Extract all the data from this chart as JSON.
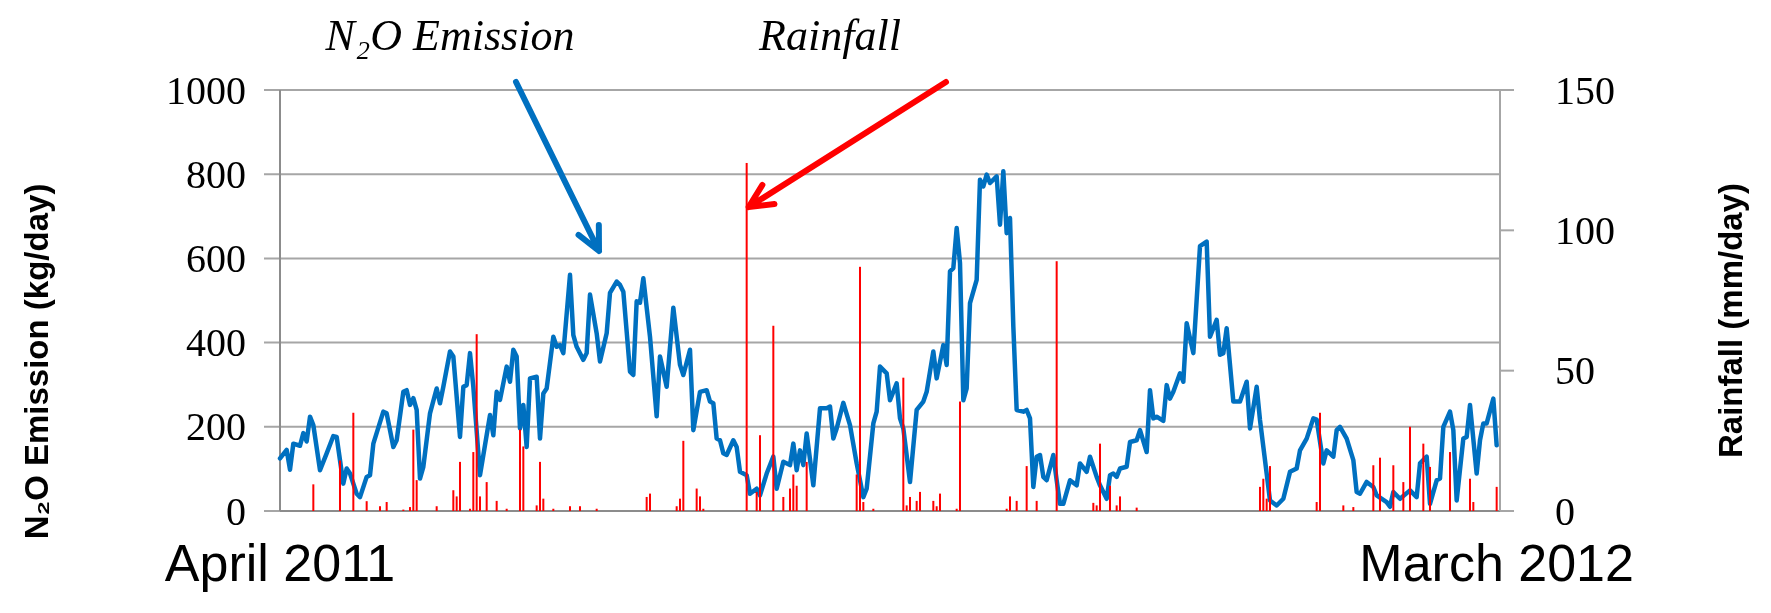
{
  "chart_data": {
    "type": "line",
    "ylabel": "N₂O Emission (kg/day)",
    "y2label": "Rainfall (mm/day)",
    "annotations": [
      "N₂O Emission",
      {
        "text": "Rainfall",
        "x": "2011-08-19",
        "y": 722
      }
    ],
    "xlim": [
      "2011-04-01",
      "2012-04-01"
    ],
    "xticks": [
      {
        "value": "2011-04-01",
        "label": "April 2011"
      },
      {
        "value": "2012-03-31",
        "label": "March 2012"
      }
    ],
    "ylim": [
      0,
      1000
    ],
    "yticks": [
      0,
      200,
      400,
      600,
      800,
      1000
    ],
    "y2lim": [
      0,
      150
    ],
    "y2ticks": [
      0,
      50,
      100,
      150
    ],
    "grid": "y",
    "series": [
      {
        "color": "#0070c0",
        "x": [
          "2011-04-01",
          "2011-04-03",
          "2011-04-04",
          "2011-04-05",
          "2011-04-07",
          "2011-04-08",
          "2011-04-09",
          "2011-04-10",
          "2011-04-11",
          "2011-04-13",
          "2011-04-15",
          "2011-04-17",
          "2011-04-18",
          "2011-04-20",
          "2011-04-21",
          "2011-04-22",
          "2011-04-24",
          "2011-04-25",
          "2011-04-27",
          "2011-04-28",
          "2011-04-29",
          "2011-05-02",
          "2011-05-03",
          "2011-05-05",
          "2011-05-06",
          "2011-05-08",
          "2011-05-09",
          "2011-05-10",
          "2011-05-11",
          "2011-05-12",
          "2011-05-13",
          "2011-05-14",
          "2011-05-16",
          "2011-05-18",
          "2011-05-19",
          "2011-05-20",
          "2011-05-22",
          "2011-05-23",
          "2011-05-25",
          "2011-05-26",
          "2011-05-27",
          "2011-05-28",
          "2011-05-29",
          "2011-05-31",
          "2011-06-03",
          "2011-06-04",
          "2011-06-05",
          "2011-06-06",
          "2011-06-08",
          "2011-06-09",
          "2011-06-10",
          "2011-06-11",
          "2011-06-12",
          "2011-06-13",
          "2011-06-14",
          "2011-06-15",
          "2011-06-17",
          "2011-06-18",
          "2011-06-19",
          "2011-06-20",
          "2011-06-22",
          "2011-06-23",
          "2011-06-24",
          "2011-06-25",
          "2011-06-27",
          "2011-06-28",
          "2011-06-29",
          "2011-07-01",
          "2011-07-02",
          "2011-07-03",
          "2011-07-05",
          "2011-07-06",
          "2011-07-08",
          "2011-07-09",
          "2011-07-11",
          "2011-07-12",
          "2011-07-13",
          "2011-07-15",
          "2011-07-16",
          "2011-07-17",
          "2011-07-18",
          "2011-07-19",
          "2011-07-21",
          "2011-07-23",
          "2011-07-24",
          "2011-07-26",
          "2011-07-28",
          "2011-07-30",
          "2011-07-31",
          "2011-08-02",
          "2011-08-03",
          "2011-08-05",
          "2011-08-07",
          "2011-08-08",
          "2011-08-09",
          "2011-08-10",
          "2011-08-11",
          "2011-08-12",
          "2011-08-13",
          "2011-08-15",
          "2011-08-16",
          "2011-08-17",
          "2011-08-19",
          "2011-08-20",
          "2011-08-22",
          "2011-08-23",
          "2011-08-25",
          "2011-08-27",
          "2011-08-28",
          "2011-08-30",
          "2011-09-01",
          "2011-09-02",
          "2011-09-03",
          "2011-09-04",
          "2011-09-05",
          "2011-09-06",
          "2011-09-08",
          "2011-09-10",
          "2011-09-12",
          "2011-09-13",
          "2011-09-14",
          "2011-09-15",
          "2011-09-17",
          "2011-09-19",
          "2011-09-21",
          "2011-09-23",
          "2011-09-24",
          "2011-09-26",
          "2011-09-27",
          "2011-09-28",
          "2011-09-30",
          "2011-10-01",
          "2011-10-03",
          "2011-10-04",
          "2011-10-05",
          "2011-10-07",
          "2011-10-09",
          "2011-10-11",
          "2011-10-12",
          "2011-10-14",
          "2011-10-15",
          "2011-10-17",
          "2011-10-18",
          "2011-10-19",
          "2011-10-20",
          "2011-10-21",
          "2011-10-22",
          "2011-10-23",
          "2011-10-24",
          "2011-10-25",
          "2011-10-27",
          "2011-10-28",
          "2011-10-29",
          "2011-10-30",
          "2011-10-31",
          "2011-11-02",
          "2011-11-03",
          "2011-11-04",
          "2011-11-05",
          "2011-11-06",
          "2011-11-07",
          "2011-11-08",
          "2011-11-10",
          "2011-11-11",
          "2011-11-12",
          "2011-11-13",
          "2011-11-14",
          "2011-11-15",
          "2011-11-16",
          "2011-11-17",
          "2011-11-19",
          "2011-11-20",
          "2011-11-21",
          "2011-11-22",
          "2011-11-24",
          "2011-11-26",
          "2011-11-27",
          "2011-11-29",
          "2011-11-30",
          "2011-12-02",
          "2011-12-03",
          "2011-12-05",
          "2011-12-06",
          "2011-12-07",
          "2011-12-08",
          "2011-12-09",
          "2011-12-11",
          "2011-12-12",
          "2011-12-14",
          "2011-12-15",
          "2011-12-17",
          "2011-12-18",
          "2011-12-19",
          "2011-12-20",
          "2011-12-22",
          "2011-12-23",
          "2011-12-24",
          "2011-12-25",
          "2011-12-27",
          "2011-12-28",
          "2011-12-29",
          "2011-12-31",
          "2012-01-02",
          "2012-01-04",
          "2012-01-05",
          "2012-01-07",
          "2012-01-08",
          "2012-01-09",
          "2012-01-10",
          "2012-01-12",
          "2012-01-14",
          "2012-01-16",
          "2012-01-17",
          "2012-01-19",
          "2012-01-20",
          "2012-01-23",
          "2012-01-25",
          "2012-01-27",
          "2012-01-29",
          "2012-01-31",
          "2012-02-01",
          "2012-02-03",
          "2012-02-05",
          "2012-02-06",
          "2012-02-08",
          "2012-02-09",
          "2012-02-11",
          "2012-02-12",
          "2012-02-13",
          "2012-02-15",
          "2012-02-17",
          "2012-02-18",
          "2012-02-19",
          "2012-02-21",
          "2012-02-23",
          "2012-02-24",
          "2012-02-27",
          "2012-02-28",
          "2012-02-29",
          "2012-03-02",
          "2012-03-05",
          "2012-03-07",
          "2012-03-08",
          "2012-03-10",
          "2012-03-11",
          "2012-03-13",
          "2012-03-14",
          "2012-03-15",
          "2012-03-17",
          "2012-03-18",
          "2012-03-19",
          "2012-03-21",
          "2012-03-22",
          "2012-03-23",
          "2012-03-25",
          "2012-03-26",
          "2012-03-27",
          "2012-03-28",
          "2012-03-30",
          "2012-03-31"
        ],
        "values": [
          125,
          145,
          98,
          160,
          155,
          185,
          165,
          224,
          204,
          97,
          137,
          178,
          176,
          65,
          101,
          89,
          41,
          33,
          81,
          85,
          160,
          236,
          232,
          152,
          168,
          283,
          287,
          252,
          268,
          240,
          77,
          105,
          232,
          291,
          256,
          295,
          379,
          367,
          176,
          295,
          299,
          375,
          295,
          85,
          228,
          180,
          283,
          264,
          343,
          307,
          383,
          367,
          196,
          252,
          152,
          315,
          319,
          172,
          279,
          291,
          414,
          390,
          394,
          375,
          561,
          418,
          390,
          359,
          375,
          514,
          422,
          355,
          422,
          518,
          545,
          537,
          521,
          331,
          323,
          498,
          495,
          553,
          414,
          225,
          367,
          295,
          483,
          347,
          323,
          383,
          192,
          283,
          287,
          260,
          256,
          172,
          168,
          137,
          133,
          168,
          152,
          93,
          85,
          41,
          53,
          37,
          89,
          129,
          53,
          117,
          109,
          160,
          97,
          144,
          109,
          184,
          61,
          244,
          244,
          248,
          172,
          196,
          257,
          204,
          113,
          33,
          53,
          208,
          236,
          343,
          327,
          263,
          303,
          220,
          196,
          69,
          240,
          260,
          283,
          379,
          315,
          394,
          347,
          569,
          577,
          672,
          589,
          263,
          291,
          494,
          549,
          787,
          771,
          799,
          779,
          795,
          680,
          807,
          660,
          696,
          438,
          240,
          236,
          240,
          220,
          57,
          129,
          133,
          81,
          73,
          133,
          73,
          17,
          17,
          73,
          61,
          113,
          93,
          129,
          81,
          61,
          29,
          85,
          89,
          81,
          101,
          105,
          164,
          168,
          192,
          140,
          287,
          220,
          224,
          214,
          299,
          267,
          283,
          327,
          307,
          446,
          375,
          629,
          640,
          414,
          454,
          371,
          375,
          434,
          260,
          260,
          307,
          196,
          295,
          216,
          25,
          13,
          29,
          93,
          101,
          144,
          172,
          220,
          217,
          113,
          144,
          129,
          192,
          200,
          172,
          121,
          45,
          41,
          69,
          57,
          37,
          21,
          10,
          45,
          29,
          49,
          33,
          113,
          129,
          17,
          73,
          77,
          200,
          236,
          192,
          25,
          172,
          176,
          252,
          89,
          168,
          208,
          208,
          267,
          156
        ]
      },
      {
        "type": "bar",
        "axis": "y2",
        "color": "#ff0000",
        "x": [
          "2011-04-11",
          "2011-04-19",
          "2011-04-23",
          "2011-04-27",
          "2011-05-01",
          "2011-05-03",
          "2011-05-08",
          "2011-05-10",
          "2011-05-11",
          "2011-05-12",
          "2011-05-18",
          "2011-05-23",
          "2011-05-24",
          "2011-05-25",
          "2011-05-28",
          "2011-05-29",
          "2011-05-30",
          "2011-05-31",
          "2011-06-02",
          "2011-06-05",
          "2011-06-08",
          "2011-06-12",
          "2011-06-13",
          "2011-06-17",
          "2011-06-18",
          "2011-06-19",
          "2011-06-22",
          "2011-06-27",
          "2011-06-30",
          "2011-07-05",
          "2011-07-20",
          "2011-07-21",
          "2011-07-29",
          "2011-07-30",
          "2011-07-31",
          "2011-08-04",
          "2011-08-05",
          "2011-08-06",
          "2011-08-19",
          "2011-08-22",
          "2011-08-23",
          "2011-08-27",
          "2011-08-30",
          "2011-09-01",
          "2011-09-02",
          "2011-09-03",
          "2011-09-06",
          "2011-09-21",
          "2011-09-22",
          "2011-09-23",
          "2011-09-26",
          "2011-10-05",
          "2011-10-06",
          "2011-10-07",
          "2011-10-09",
          "2011-10-10",
          "2011-10-14",
          "2011-10-15",
          "2011-10-16",
          "2011-10-21",
          "2011-10-22",
          "2011-11-05",
          "2011-11-06",
          "2011-11-08",
          "2011-11-11",
          "2011-11-14",
          "2011-11-20",
          "2011-12-01",
          "2011-12-02",
          "2011-12-03",
          "2011-12-06",
          "2011-12-08",
          "2011-12-09",
          "2011-12-14",
          "2012-01-20",
          "2012-01-21",
          "2012-01-22",
          "2012-01-23",
          "2012-02-06",
          "2012-02-07",
          "2012-02-14",
          "2012-02-17",
          "2012-02-23",
          "2012-02-25",
          "2012-02-29",
          "2012-03-03",
          "2012-03-05",
          "2012-03-09",
          "2012-03-11",
          "2012-03-17",
          "2012-03-23",
          "2012-03-24",
          "2012-03-31"
        ],
        "values": [
          9.5,
          18,
          35,
          3.5,
          1.7,
          3.2,
          0.5,
          1.4,
          29,
          11,
          1.7,
          7.4,
          5.2,
          17.5,
          0.8,
          21,
          63,
          5.2,
          10.3,
          3.6,
          0.8,
          29,
          23,
          2,
          17.5,
          4.4,
          0.8,
          1.7,
          1.7,
          0.8,
          5,
          6.2,
          1.7,
          4.4,
          25,
          8,
          5.2,
          0.8,
          124,
          6.8,
          27,
          66,
          5,
          8,
          13,
          9,
          17.5,
          13,
          87,
          3.2,
          0.8,
          47.5,
          2,
          5,
          3.6,
          6.8,
          3.6,
          1.7,
          6.2,
          0.8,
          39,
          0.8,
          5.2,
          3.6,
          16,
          3.6,
          89,
          2.9,
          2,
          24,
          9,
          2,
          5.2,
          1.2,
          8.6,
          11.5,
          4.4,
          16,
          3.2,
          35,
          2,
          1.4,
          16.3,
          19,
          16.3,
          10.3,
          30,
          24,
          15.7,
          21,
          11.5,
          3.2,
          8.6
        ]
      }
    ]
  }
}
